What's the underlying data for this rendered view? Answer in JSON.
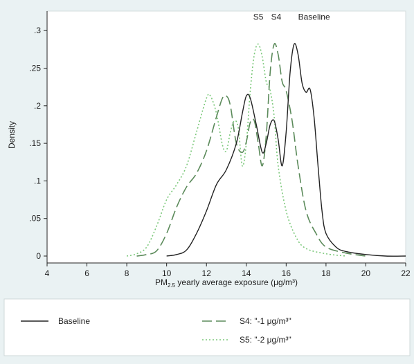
{
  "chart_data": {
    "type": "line",
    "ylabel": "Density",
    "xlabel_prefix": "PM",
    "xlabel_subscript": "2.5",
    "xlabel_suffix": " yearly average exposure (μg/m³)",
    "xlim": [
      4,
      22
    ],
    "ylim": [
      0,
      0.3
    ],
    "x_ticks": [
      4,
      6,
      8,
      10,
      12,
      14,
      16,
      18,
      20,
      22
    ],
    "x_tick_labels": [
      "4",
      "6",
      "8",
      "10",
      "12",
      "14",
      "16",
      "18",
      "20",
      "22"
    ],
    "y_ticks": [
      0,
      0.05,
      0.1,
      0.15,
      0.2,
      0.25,
      0.3
    ],
    "y_tick_labels": [
      "0",
      ".05",
      ".1",
      ".15",
      ".2",
      ".25",
      ".3"
    ],
    "annotations": [
      {
        "text": "S5",
        "x": 14.6,
        "y": 0.318
      },
      {
        "text": "S4",
        "x": 15.5,
        "y": 0.318
      },
      {
        "text": "Baseline",
        "x": 17.4,
        "y": 0.318
      }
    ],
    "legend_placement": "bottom",
    "series": [
      {
        "name": "Baseline",
        "color": "#222222",
        "style": "solid",
        "x": [
          10.0,
          10.5,
          11.0,
          11.5,
          12.0,
          12.5,
          13.0,
          13.5,
          13.8,
          14.0,
          14.2,
          14.5,
          14.8,
          15.0,
          15.2,
          15.4,
          15.6,
          15.8,
          16.0,
          16.2,
          16.4,
          16.6,
          16.8,
          17.0,
          17.2,
          17.4,
          17.6,
          17.8,
          18.0,
          18.5,
          19.0,
          20.0,
          21.0,
          22.0
        ],
        "y": [
          0.0,
          0.002,
          0.008,
          0.03,
          0.06,
          0.095,
          0.115,
          0.15,
          0.19,
          0.213,
          0.21,
          0.175,
          0.138,
          0.15,
          0.175,
          0.18,
          0.155,
          0.12,
          0.165,
          0.245,
          0.282,
          0.268,
          0.23,
          0.218,
          0.222,
          0.185,
          0.12,
          0.06,
          0.03,
          0.012,
          0.006,
          0.002,
          0.0,
          0.0
        ]
      },
      {
        "name": "S4: \"-1 μg/m³\"",
        "color": "#5b8a5a",
        "style": "dashed",
        "x": [
          8.5,
          9.0,
          9.5,
          10.0,
          10.5,
          11.0,
          11.5,
          12.0,
          12.5,
          12.8,
          13.0,
          13.2,
          13.5,
          13.8,
          14.0,
          14.2,
          14.4,
          14.6,
          14.8,
          15.0,
          15.2,
          15.4,
          15.6,
          15.8,
          16.0,
          16.3,
          16.6,
          17.0,
          17.5,
          18.0,
          19.0,
          20.0
        ],
        "y": [
          0.0,
          0.002,
          0.007,
          0.03,
          0.065,
          0.092,
          0.11,
          0.14,
          0.185,
          0.21,
          0.213,
          0.2,
          0.15,
          0.138,
          0.152,
          0.178,
          0.18,
          0.15,
          0.12,
          0.16,
          0.245,
          0.282,
          0.268,
          0.232,
          0.22,
          0.18,
          0.12,
          0.06,
          0.03,
          0.012,
          0.004,
          0.0
        ]
      },
      {
        "name": "S5: \"-2 μg/m³\"",
        "color": "#7bc87a",
        "style": "dotted",
        "x": [
          8.0,
          8.5,
          9.0,
          9.5,
          10.0,
          10.5,
          11.0,
          11.5,
          12.0,
          12.2,
          12.5,
          12.8,
          13.0,
          13.2,
          13.4,
          13.6,
          13.8,
          14.0,
          14.2,
          14.4,
          14.6,
          14.8,
          15.0,
          15.2,
          15.4,
          15.6,
          16.0,
          16.5,
          17.0,
          18.0,
          19.0
        ],
        "y": [
          0.0,
          0.003,
          0.012,
          0.04,
          0.075,
          0.095,
          0.12,
          0.165,
          0.21,
          0.213,
          0.19,
          0.148,
          0.14,
          0.165,
          0.18,
          0.17,
          0.12,
          0.15,
          0.22,
          0.268,
          0.282,
          0.265,
          0.232,
          0.22,
          0.185,
          0.12,
          0.06,
          0.025,
          0.01,
          0.003,
          0.0
        ]
      }
    ]
  }
}
